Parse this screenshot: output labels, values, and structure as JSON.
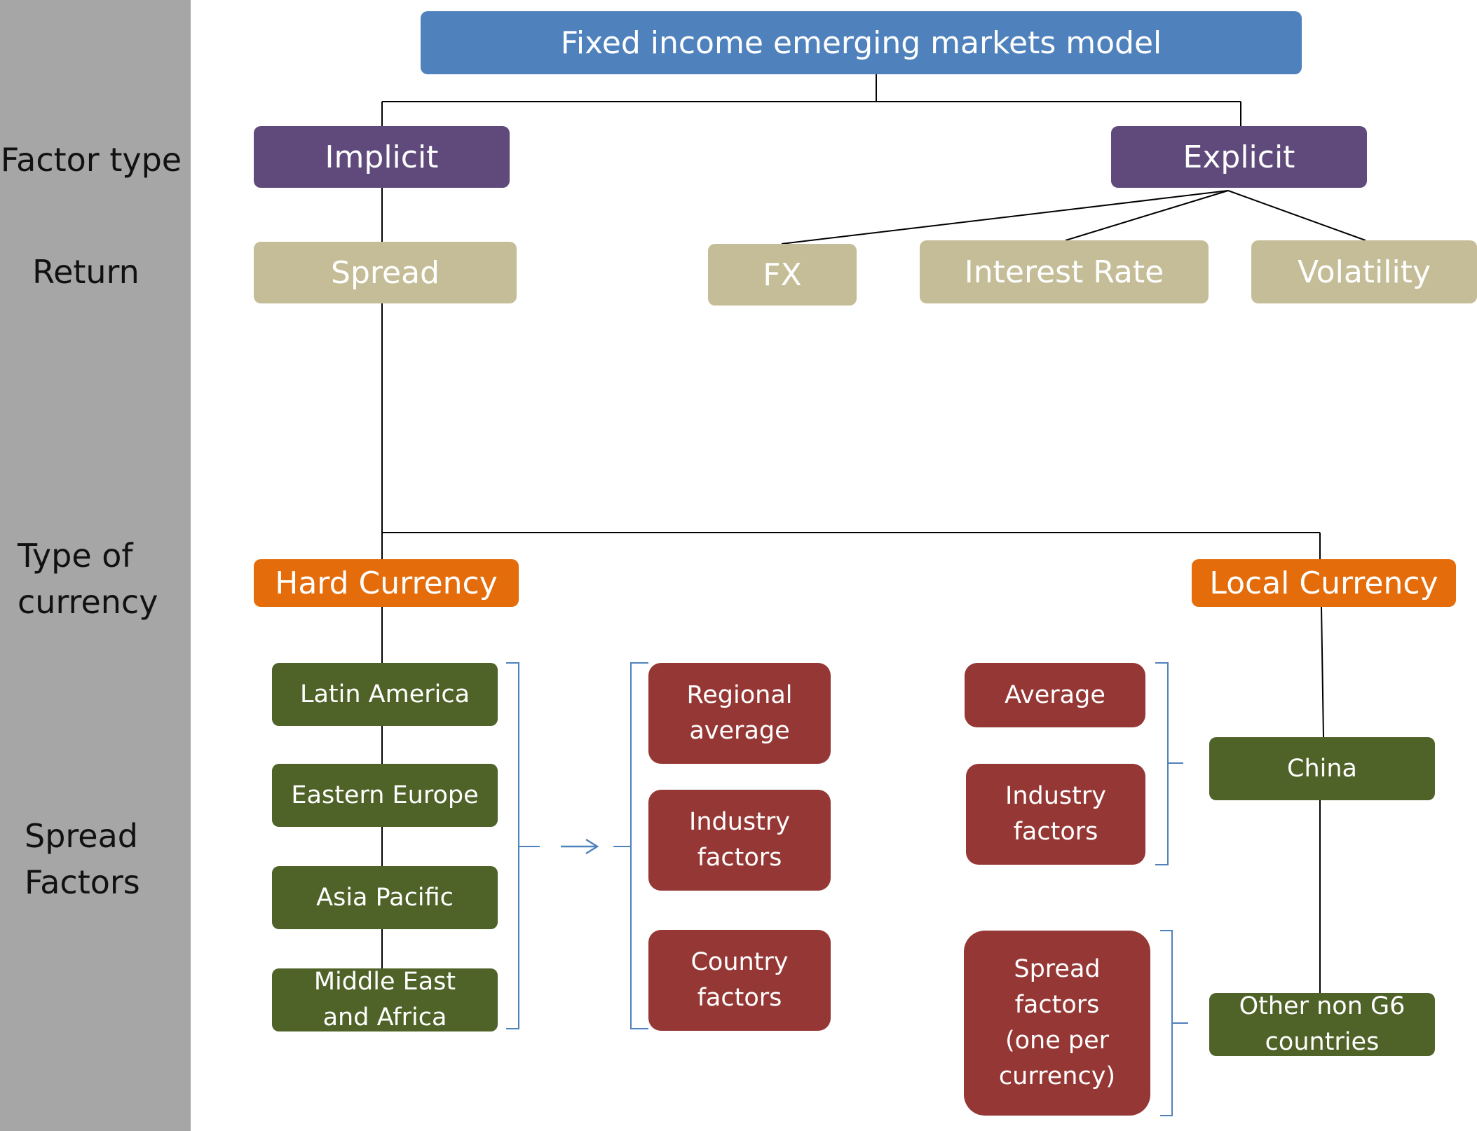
{
  "title": "Fixed income emerging markets model",
  "row_labels": {
    "factor_type": "Factor type",
    "return": "Return",
    "type_of_currency": "Type of\ncurrency",
    "spread_factors": "Spread\nFactors"
  },
  "factor_types": {
    "implicit": "Implicit",
    "explicit": "Explicit"
  },
  "returns": {
    "spread": "Spread",
    "fx": "FX",
    "interest_rate": "Interest Rate",
    "volatility": "Volatility"
  },
  "currencies": {
    "hard": "Hard Currency",
    "local": "Local Currency"
  },
  "hard_regions": [
    "Latin America",
    "Eastern Europe",
    "Asia Pacific",
    "Middle East\nand Africa"
  ],
  "hard_factors": [
    "Regional\naverage",
    "Industry\nfactors",
    "Country\nfactors"
  ],
  "local_regions": [
    "China",
    "Other non G6\ncountries"
  ],
  "china_factors": [
    "Average",
    "Industry\nfactors"
  ],
  "other_factors": [
    "Spread\nfactors\n(one per\ncurrency)"
  ],
  "colors": {
    "sidebar": "#a6a6a6",
    "title_box": "#4f81bd",
    "factor_type_box": "#604a7b",
    "return_box": "#c4bd97",
    "currency_box": "#e46c0a",
    "region_box": "#4f6228",
    "factor_box": "#953735",
    "bracket": "#4f81bd",
    "connector": "#000000"
  }
}
